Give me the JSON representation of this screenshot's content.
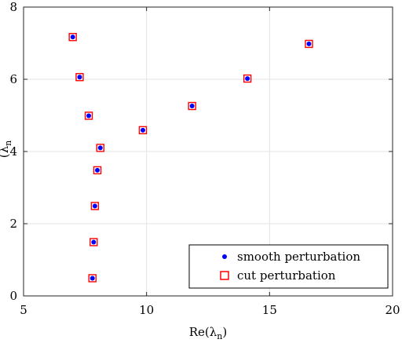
{
  "chart_data": {
    "type": "scatter",
    "title": "",
    "xlabel": "Re(λ",
    "xlabel_sub": "n",
    "xlabel_suffix": ")",
    "ylabel": "(λ",
    "ylabel_sub": "n",
    "xlim": [
      5,
      20
    ],
    "ylim": [
      0,
      8
    ],
    "xticks": [
      5,
      10,
      15,
      20
    ],
    "yticks": [
      0,
      2,
      4,
      6,
      8
    ],
    "grid": true,
    "legend_position": "bottom-right",
    "series": [
      {
        "name": "smooth perturbation",
        "marker": "dot",
        "color": "#0000ff",
        "points": [
          [
            7.0,
            7.17
          ],
          [
            7.28,
            6.06
          ],
          [
            7.65,
            4.99
          ],
          [
            8.12,
            4.1
          ],
          [
            8.0,
            3.48
          ],
          [
            7.9,
            2.49
          ],
          [
            7.85,
            1.49
          ],
          [
            7.8,
            0.49
          ],
          [
            9.85,
            4.59
          ],
          [
            11.85,
            5.26
          ],
          [
            14.1,
            6.02
          ],
          [
            16.6,
            6.98
          ]
        ]
      },
      {
        "name": "cut perturbation",
        "marker": "open-square",
        "color": "#ff0000",
        "points": [
          [
            7.0,
            7.17
          ],
          [
            7.28,
            6.06
          ],
          [
            7.65,
            4.99
          ],
          [
            8.12,
            4.1
          ],
          [
            8.0,
            3.48
          ],
          [
            7.9,
            2.49
          ],
          [
            7.85,
            1.49
          ],
          [
            7.8,
            0.49
          ],
          [
            9.85,
            4.59
          ],
          [
            11.85,
            5.26
          ],
          [
            14.1,
            6.02
          ],
          [
            16.6,
            6.98
          ]
        ]
      }
    ]
  }
}
